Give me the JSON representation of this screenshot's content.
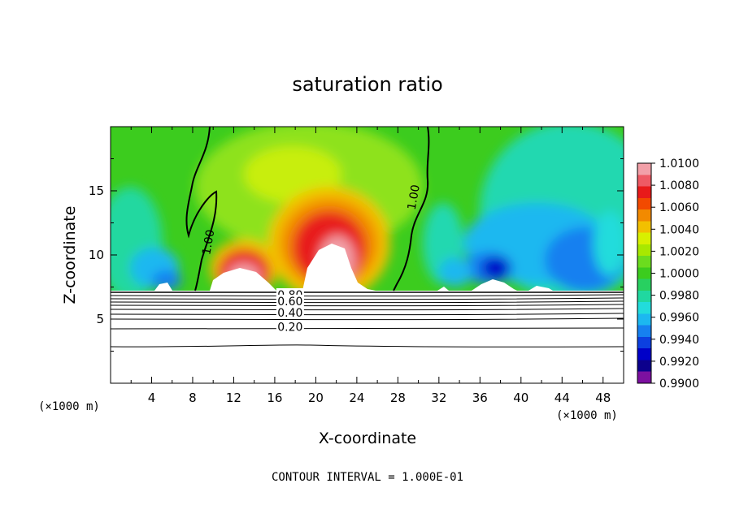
{
  "chart_data": {
    "type": "heatmap",
    "title": "saturation ratio",
    "xlabel": "X-coordinate",
    "ylabel": "Z-coordinate",
    "x_unit_left": "(×1000 m)",
    "x_unit_right": "(×1000 m)",
    "footer": "CONTOUR INTERVAL = 1.000E-01",
    "xlim": [
      0,
      50
    ],
    "ylim": [
      0,
      20
    ],
    "x_ticks": [
      4,
      8,
      12,
      16,
      20,
      24,
      28,
      32,
      36,
      40,
      44,
      48
    ],
    "y_ticks": [
      5,
      10,
      15
    ],
    "colorbar": {
      "labels": [
        "1.0100",
        "1.0080",
        "1.0060",
        "1.0040",
        "1.0020",
        "1.0000",
        "0.9980",
        "0.9960",
        "0.9940",
        "0.9920",
        "0.9900"
      ],
      "colors": [
        "#f2a0a8",
        "#ee5a64",
        "#e81a1a",
        "#f24a00",
        "#f28a00",
        "#f2c000",
        "#d8f000",
        "#a8e800",
        "#6cdc1e",
        "#3ccc1e",
        "#28d060",
        "#20d8a0",
        "#22dcdc",
        "#1cb8f0",
        "#1680f0",
        "#0c40e0",
        "#0000c8",
        "#0c008c",
        "#7c10a0"
      ]
    },
    "contour_labels": [
      {
        "text": "1.00",
        "x": 9.5,
        "z": 11.0
      },
      {
        "text": "1.00",
        "x": 29.5,
        "z": 14.5
      },
      {
        "text": "0.80",
        "x": 17.5,
        "z": 6.9
      },
      {
        "text": "0.60",
        "x": 17.5,
        "z": 6.4
      },
      {
        "text": "0.40",
        "x": 17.5,
        "z": 5.5
      },
      {
        "text": "0.20",
        "x": 17.5,
        "z": 4.4
      }
    ]
  }
}
